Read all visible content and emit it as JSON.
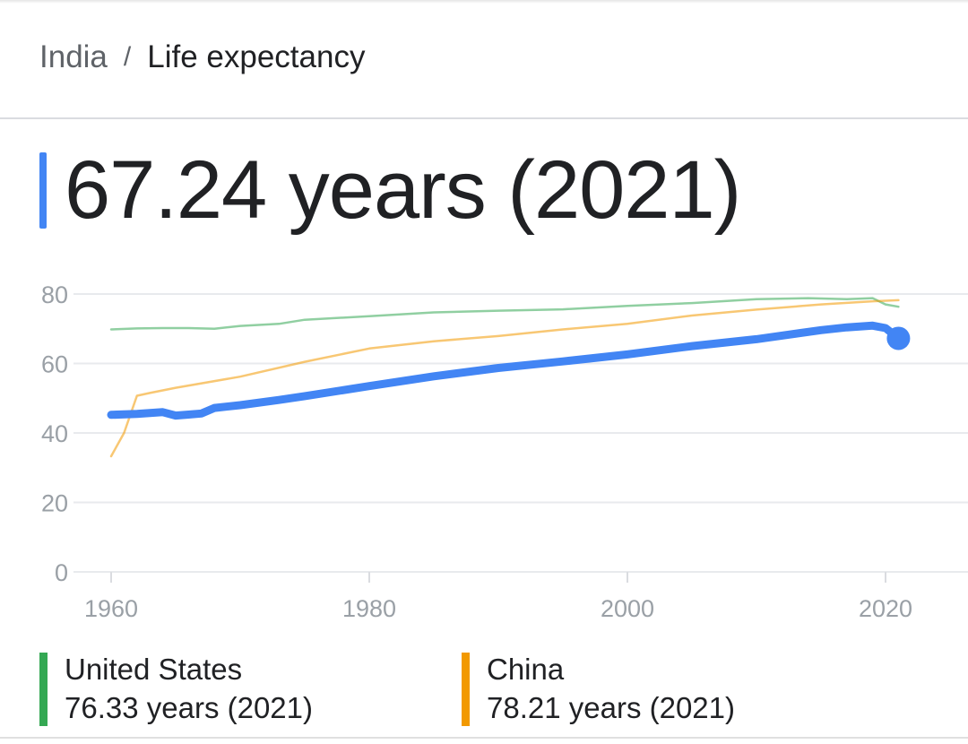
{
  "breadcrumb": {
    "country": "India",
    "separator": "/",
    "metric": "Life expectancy"
  },
  "headline": {
    "value": "67.24 years (2021)",
    "accent_color": "#4285f4"
  },
  "legend": [
    {
      "name": "United States",
      "value": "76.33 years (2021)",
      "color": "#34a853"
    },
    {
      "name": "China",
      "value": "78.21 years (2021)",
      "color": "#f29900"
    }
  ],
  "chart_data": {
    "type": "line",
    "title": "",
    "xlabel": "",
    "ylabel": "",
    "xlim": [
      1960,
      2021
    ],
    "ylim": [
      0,
      80
    ],
    "x_ticks": [
      1960,
      1980,
      2000,
      2020
    ],
    "y_ticks": [
      0,
      20,
      40,
      60,
      80
    ],
    "grid": true,
    "legend_position": "bottom",
    "series": [
      {
        "name": "India",
        "color": "#4285f4",
        "emphasis": true,
        "x": [
          1960,
          1962,
          1964,
          1965,
          1966,
          1967,
          1968,
          1970,
          1973,
          1975,
          1980,
          1985,
          1990,
          1995,
          2000,
          2005,
          2010,
          2015,
          2017,
          2019,
          2020,
          2021
        ],
        "y": [
          45.2,
          45.5,
          46.0,
          45.0,
          45.3,
          45.6,
          47.2,
          48.0,
          49.5,
          50.6,
          53.5,
          56.3,
          58.7,
          60.6,
          62.6,
          65.0,
          67.0,
          69.6,
          70.4,
          70.9,
          70.2,
          67.24
        ]
      },
      {
        "name": "United States",
        "color": "#34a853",
        "emphasis": false,
        "x": [
          1960,
          1962,
          1964,
          1966,
          1968,
          1970,
          1973,
          1975,
          1980,
          1985,
          1990,
          1995,
          2000,
          2005,
          2010,
          2014,
          2017,
          2019,
          2020,
          2021
        ],
        "y": [
          69.8,
          70.1,
          70.2,
          70.2,
          70.0,
          70.8,
          71.4,
          72.6,
          73.6,
          74.7,
          75.2,
          75.6,
          76.6,
          77.4,
          78.5,
          78.8,
          78.5,
          78.8,
          77.0,
          76.33
        ]
      },
      {
        "name": "China",
        "color": "#f29900",
        "emphasis": false,
        "x": [
          1960,
          1961,
          1962,
          1963,
          1965,
          1970,
          1975,
          1980,
          1985,
          1990,
          1995,
          2000,
          2005,
          2010,
          2015,
          2019,
          2021
        ],
        "y": [
          33.3,
          40.0,
          50.7,
          51.5,
          53.0,
          56.2,
          60.5,
          64.3,
          66.4,
          67.9,
          69.8,
          71.4,
          73.8,
          75.5,
          77.0,
          77.9,
          78.21
        ]
      }
    ]
  }
}
